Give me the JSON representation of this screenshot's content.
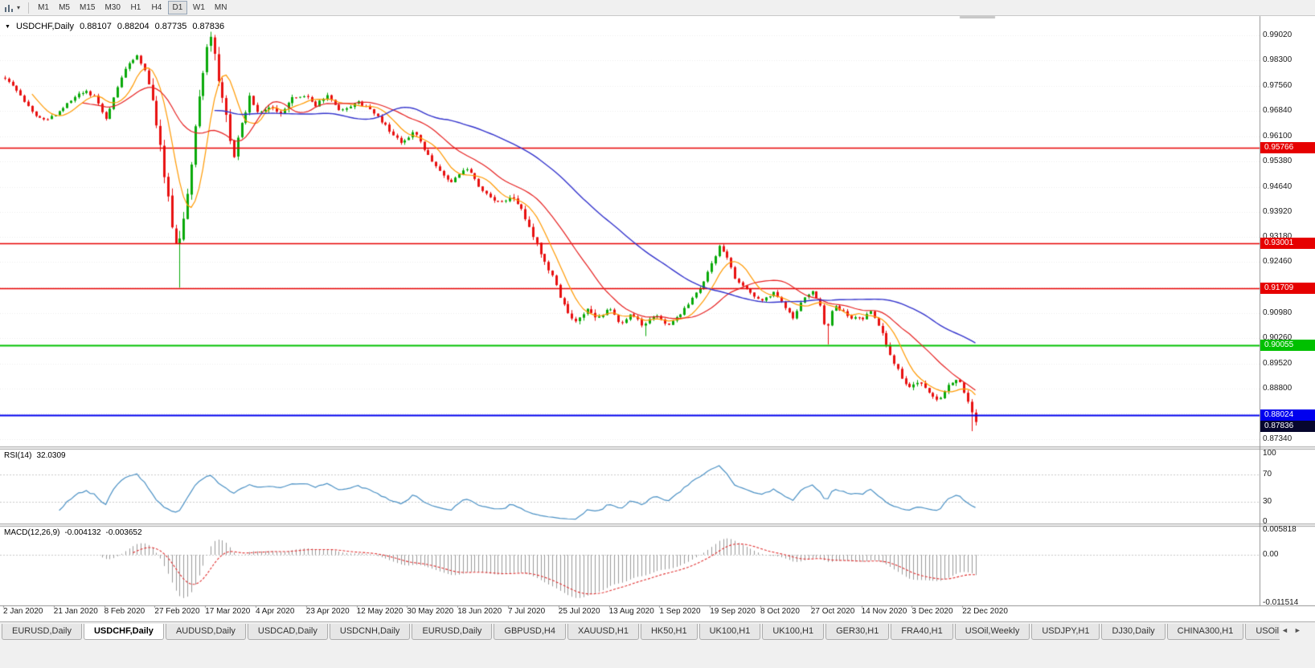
{
  "icons": {
    "title_dropdown": "▼",
    "toolbar_caret": "▾",
    "tabs_scroll_left": "◄",
    "tabs_scroll_right": "►"
  },
  "toolbar": {
    "timeframes": [
      {
        "label": "M1",
        "active": false
      },
      {
        "label": "M5",
        "active": false
      },
      {
        "label": "M15",
        "active": false
      },
      {
        "label": "M30",
        "active": false
      },
      {
        "label": "H1",
        "active": false
      },
      {
        "label": "H4",
        "active": false
      },
      {
        "label": "D1",
        "active": true
      },
      {
        "label": "W1",
        "active": false
      },
      {
        "label": "MN",
        "active": false
      }
    ]
  },
  "chart": {
    "title": {
      "symbol_period": "USDCHF,Daily",
      "open": "0.88107",
      "high": "0.88204",
      "low": "0.87735",
      "close": "0.87836"
    },
    "price_axis": {
      "ticks": [
        "0.99020",
        "0.98300",
        "0.97560",
        "0.96840",
        "0.96100",
        "0.95380",
        "0.94640",
        "0.93920",
        "0.93180",
        "0.92460",
        "0.91720",
        "0.90980",
        "0.90260",
        "0.89520",
        "0.88800",
        "0.88080",
        "0.87340"
      ]
    },
    "hlines": [
      {
        "price": 0.95766,
        "label": "0.95766",
        "color": "#E60000",
        "width": 1.6
      },
      {
        "price": 0.93001,
        "label": "0.93001",
        "color": "#E60000",
        "width": 1.6
      },
      {
        "price": 0.91709,
        "label": "0.91709",
        "color": "#E60000",
        "width": 1.6
      },
      {
        "price": 0.90055,
        "label": "0.90055",
        "color": "#00C000",
        "width": 2
      },
      {
        "price": 0.88024,
        "label": "0.88024",
        "color": "#0000EE",
        "width": 2
      }
    ],
    "current_price": {
      "value": 0.87836,
      "label": "0.87836",
      "color": "#06062E"
    },
    "colors": {
      "up": "#09A909",
      "down": "#E81010",
      "ma_fast": "#FF9900",
      "ma_mid": "#E62020",
      "ma_slow": "#3333CC",
      "background": "#FFFFFF",
      "grid": "#ECECEC"
    }
  },
  "rsi": {
    "label": "RSI(14)",
    "value": "32.0309",
    "levels": [
      "100",
      "70",
      "30",
      "0"
    ],
    "line_color": "#4A90C4"
  },
  "macd": {
    "label": "MACD(12,26,9)",
    "value_macd": "-0.004132",
    "value_signal": "-0.003652",
    "axis": [
      "0.005818",
      "0.00",
      "-0.011514"
    ],
    "histogram_color": "#9A9A9A",
    "signal_color": "#E03030"
  },
  "dates": [
    "2 Jan 2020",
    "21 Jan 2020",
    "8 Feb 2020",
    "27 Feb 2020",
    "17 Mar 2020",
    "4 Apr 2020",
    "23 Apr 2020",
    "12 May 2020",
    "30 May 2020",
    "18 Jun 2020",
    "7 Jul 2020",
    "25 Jul 2020",
    "13 Aug 2020",
    "1 Sep 2020",
    "19 Sep 2020",
    "8 Oct 2020",
    "27 Oct 2020",
    "14 Nov 2020",
    "3 Dec 2020",
    "22 Dec 2020"
  ],
  "tabs": [
    {
      "label": "EURUSD,Daily",
      "active": false
    },
    {
      "label": "USDCHF,Daily",
      "active": true
    },
    {
      "label": "AUDUSD,Daily",
      "active": false
    },
    {
      "label": "USDCAD,Daily",
      "active": false
    },
    {
      "label": "USDCNH,Daily",
      "active": false
    },
    {
      "label": "EURUSD,Daily",
      "active": false
    },
    {
      "label": "GBPUSD,H4",
      "active": false
    },
    {
      "label": "XAUUSD,H1",
      "active": false
    },
    {
      "label": "HK50,H1",
      "active": false
    },
    {
      "label": "UK100,H1",
      "active": false
    },
    {
      "label": "UK100,H1",
      "active": false
    },
    {
      "label": "GER30,H1",
      "active": false
    },
    {
      "label": "FRA40,H1",
      "active": false
    },
    {
      "label": "USOil,Weekly",
      "active": false
    },
    {
      "label": "USDJPY,H1",
      "active": false
    },
    {
      "label": "DJ30,Daily",
      "active": false
    },
    {
      "label": "CHINA300,H1",
      "active": false
    },
    {
      "label": "USOil,",
      "active": false
    }
  ],
  "chart_data": {
    "type": "candlestick",
    "symbol": "USDCHF",
    "period": "Daily",
    "title": "USDCHF,Daily",
    "visible_range": {
      "start": "2 Jan 2020",
      "end": "22 Dec 2020"
    },
    "last_candle": {
      "open": 0.88107,
      "high": 0.88204,
      "low": 0.87735,
      "close": 0.87836
    },
    "horizontal_lines": [
      0.95766,
      0.93001,
      0.91709,
      0.90055,
      0.88024
    ],
    "indicators": [
      {
        "name": "RSI",
        "period": 14,
        "current": 32.0309,
        "levels": [
          70,
          30
        ]
      },
      {
        "name": "MACD",
        "fast": 12,
        "slow": 26,
        "signal": 9,
        "current_macd": -0.004132,
        "current_signal": -0.003652
      }
    ],
    "candle_count": 251,
    "price_path_anchors": [
      [
        0.0,
        0.978
      ],
      [
        0.01,
        0.975
      ],
      [
        0.022,
        0.9705
      ],
      [
        0.034,
        0.9665
      ],
      [
        0.046,
        0.966
      ],
      [
        0.058,
        0.969
      ],
      [
        0.07,
        0.972
      ],
      [
        0.082,
        0.974
      ],
      [
        0.094,
        0.972
      ],
      [
        0.104,
        0.966
      ],
      [
        0.116,
        0.975
      ],
      [
        0.126,
        0.982
      ],
      [
        0.136,
        0.984
      ],
      [
        0.146,
        0.979
      ],
      [
        0.156,
        0.965
      ],
      [
        0.164,
        0.95
      ],
      [
        0.172,
        0.936
      ],
      [
        0.178,
        0.928
      ],
      [
        0.186,
        0.94
      ],
      [
        0.194,
        0.958
      ],
      [
        0.202,
        0.976
      ],
      [
        0.209,
        0.9885
      ],
      [
        0.213,
        0.989
      ],
      [
        0.22,
        0.977
      ],
      [
        0.228,
        0.966
      ],
      [
        0.236,
        0.955
      ],
      [
        0.244,
        0.965
      ],
      [
        0.252,
        0.972
      ],
      [
        0.262,
        0.968
      ],
      [
        0.272,
        0.97
      ],
      [
        0.284,
        0.968
      ],
      [
        0.296,
        0.972
      ],
      [
        0.308,
        0.973
      ],
      [
        0.32,
        0.97
      ],
      [
        0.332,
        0.973
      ],
      [
        0.345,
        0.968
      ],
      [
        0.362,
        0.971
      ],
      [
        0.375,
        0.969
      ],
      [
        0.392,
        0.964
      ],
      [
        0.409,
        0.959
      ],
      [
        0.421,
        0.9625
      ],
      [
        0.442,
        0.953
      ],
      [
        0.459,
        0.947
      ],
      [
        0.475,
        0.952
      ],
      [
        0.492,
        0.945
      ],
      [
        0.508,
        0.942
      ],
      [
        0.525,
        0.943
      ],
      [
        0.532,
        0.9395
      ],
      [
        0.542,
        0.933
      ],
      [
        0.554,
        0.926
      ],
      [
        0.566,
        0.919
      ],
      [
        0.578,
        0.911
      ],
      [
        0.588,
        0.907
      ],
      [
        0.598,
        0.911
      ],
      [
        0.61,
        0.908
      ],
      [
        0.622,
        0.9115
      ],
      [
        0.634,
        0.907
      ],
      [
        0.646,
        0.9095
      ],
      [
        0.658,
        0.906
      ],
      [
        0.67,
        0.9095
      ],
      [
        0.682,
        0.906
      ],
      [
        0.694,
        0.909
      ],
      [
        0.706,
        0.9135
      ],
      [
        0.718,
        0.918
      ],
      [
        0.728,
        0.924
      ],
      [
        0.736,
        0.929
      ],
      [
        0.744,
        0.9255
      ],
      [
        0.752,
        0.92
      ],
      [
        0.762,
        0.917
      ],
      [
        0.772,
        0.915
      ],
      [
        0.782,
        0.9135
      ],
      [
        0.792,
        0.916
      ],
      [
        0.802,
        0.912
      ],
      [
        0.812,
        0.9085
      ],
      [
        0.822,
        0.9135
      ],
      [
        0.832,
        0.916
      ],
      [
        0.84,
        0.912
      ],
      [
        0.846,
        0.904
      ],
      [
        0.854,
        0.9125
      ],
      [
        0.862,
        0.9105
      ],
      [
        0.872,
        0.9085
      ],
      [
        0.882,
        0.908
      ],
      [
        0.892,
        0.9105
      ],
      [
        0.902,
        0.905
      ],
      [
        0.912,
        0.898
      ],
      [
        0.922,
        0.892
      ],
      [
        0.932,
        0.888
      ],
      [
        0.942,
        0.8905
      ],
      [
        0.952,
        0.887
      ],
      [
        0.962,
        0.885
      ],
      [
        0.972,
        0.8895
      ],
      [
        0.982,
        0.8915
      ],
      [
        0.99,
        0.8855
      ],
      [
        1.0,
        0.879
      ]
    ],
    "volatility_zones": [
      {
        "from": 0.0,
        "to": 0.15,
        "v": 0.0009
      },
      {
        "from": 0.15,
        "to": 0.24,
        "v": 0.0028
      },
      {
        "from": 0.24,
        "to": 0.3,
        "v": 0.0014
      },
      {
        "from": 0.3,
        "to": 0.52,
        "v": 0.0009
      },
      {
        "from": 0.52,
        "to": 0.62,
        "v": 0.0013
      },
      {
        "from": 0.62,
        "to": 0.9,
        "v": 0.0008
      },
      {
        "from": 0.9,
        "to": 1.01,
        "v": 0.0011
      }
    ],
    "wick_events": [
      {
        "x": 0.178,
        "low": 0.9172
      },
      {
        "x": 0.213,
        "high": 0.9901
      },
      {
        "x": 0.658,
        "low": 0.9032
      },
      {
        "x": 0.846,
        "low": 0.9008
      },
      {
        "x": 0.996,
        "low": 0.8757
      }
    ]
  }
}
